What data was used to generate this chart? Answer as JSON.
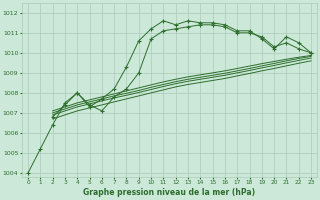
{
  "title": "Graphe pression niveau de la mer (hPa)",
  "bg_color": "#cce8d8",
  "grid_color": "#aaccb8",
  "line_color": "#2d6e2d",
  "xlim": [
    -0.5,
    23.5
  ],
  "ylim": [
    1003.8,
    1012.5
  ],
  "yticks": [
    1004,
    1005,
    1006,
    1007,
    1008,
    1009,
    1010,
    1011,
    1012
  ],
  "xticks": [
    0,
    1,
    2,
    3,
    4,
    5,
    6,
    7,
    8,
    9,
    10,
    11,
    12,
    13,
    14,
    15,
    16,
    17,
    18,
    19,
    20,
    21,
    22,
    23
  ],
  "jagged1_x": [
    0,
    1,
    2,
    3,
    4,
    5,
    6,
    7,
    8,
    9,
    10,
    11,
    12,
    13,
    14,
    15,
    16,
    17,
    18,
    19,
    20,
    21,
    22,
    23
  ],
  "jagged1_y": [
    1004.0,
    1005.2,
    1006.4,
    1007.5,
    1008.0,
    1007.3,
    1007.7,
    1008.2,
    1009.3,
    1010.6,
    1011.2,
    1011.6,
    1011.4,
    1011.6,
    1011.5,
    1011.5,
    1011.4,
    1011.1,
    1011.1,
    1010.7,
    1010.2,
    1010.8,
    1010.5,
    1010.0
  ],
  "jagged2_x": [
    2,
    3,
    4,
    5,
    6,
    7,
    8,
    9,
    10,
    11,
    12,
    13,
    14,
    15,
    16,
    17,
    18,
    19,
    20,
    21,
    22,
    23
  ],
  "jagged2_y": [
    1006.8,
    1007.4,
    1008.0,
    1007.4,
    1007.1,
    1007.8,
    1008.2,
    1009.0,
    1010.7,
    1011.1,
    1011.2,
    1011.3,
    1011.4,
    1011.4,
    1011.3,
    1011.0,
    1011.0,
    1010.8,
    1010.3,
    1010.5,
    1010.2,
    1010.0
  ],
  "smooth_lines": [
    [
      2,
      3,
      4,
      5,
      6,
      7,
      8,
      9,
      10,
      11,
      12,
      13,
      14,
      15,
      16,
      17,
      18,
      19,
      20,
      21,
      22,
      23
    ],
    [
      1007.0,
      1007.2,
      1007.4,
      1007.55,
      1007.7,
      1007.85,
      1007.98,
      1008.12,
      1008.28,
      1008.42,
      1008.56,
      1008.68,
      1008.78,
      1008.88,
      1008.98,
      1009.1,
      1009.22,
      1009.35,
      1009.47,
      1009.6,
      1009.72,
      1009.82
    ]
  ],
  "smooth2_y": [
    1007.1,
    1007.3,
    1007.5,
    1007.65,
    1007.8,
    1007.95,
    1008.1,
    1008.25,
    1008.4,
    1008.55,
    1008.68,
    1008.8,
    1008.9,
    1009.0,
    1009.1,
    1009.22,
    1009.34,
    1009.46,
    1009.57,
    1009.68,
    1009.78,
    1009.87
  ],
  "smooth3_y": [
    1006.9,
    1007.1,
    1007.3,
    1007.45,
    1007.6,
    1007.75,
    1007.88,
    1008.02,
    1008.17,
    1008.32,
    1008.46,
    1008.58,
    1008.68,
    1008.78,
    1008.88,
    1009.0,
    1009.12,
    1009.25,
    1009.37,
    1009.5,
    1009.62,
    1009.74
  ],
  "smooth4_y": [
    1006.7,
    1006.9,
    1007.1,
    1007.25,
    1007.4,
    1007.55,
    1007.7,
    1007.85,
    1008.0,
    1008.15,
    1008.3,
    1008.42,
    1008.52,
    1008.62,
    1008.72,
    1008.85,
    1008.97,
    1009.1,
    1009.22,
    1009.35,
    1009.48,
    1009.6
  ]
}
